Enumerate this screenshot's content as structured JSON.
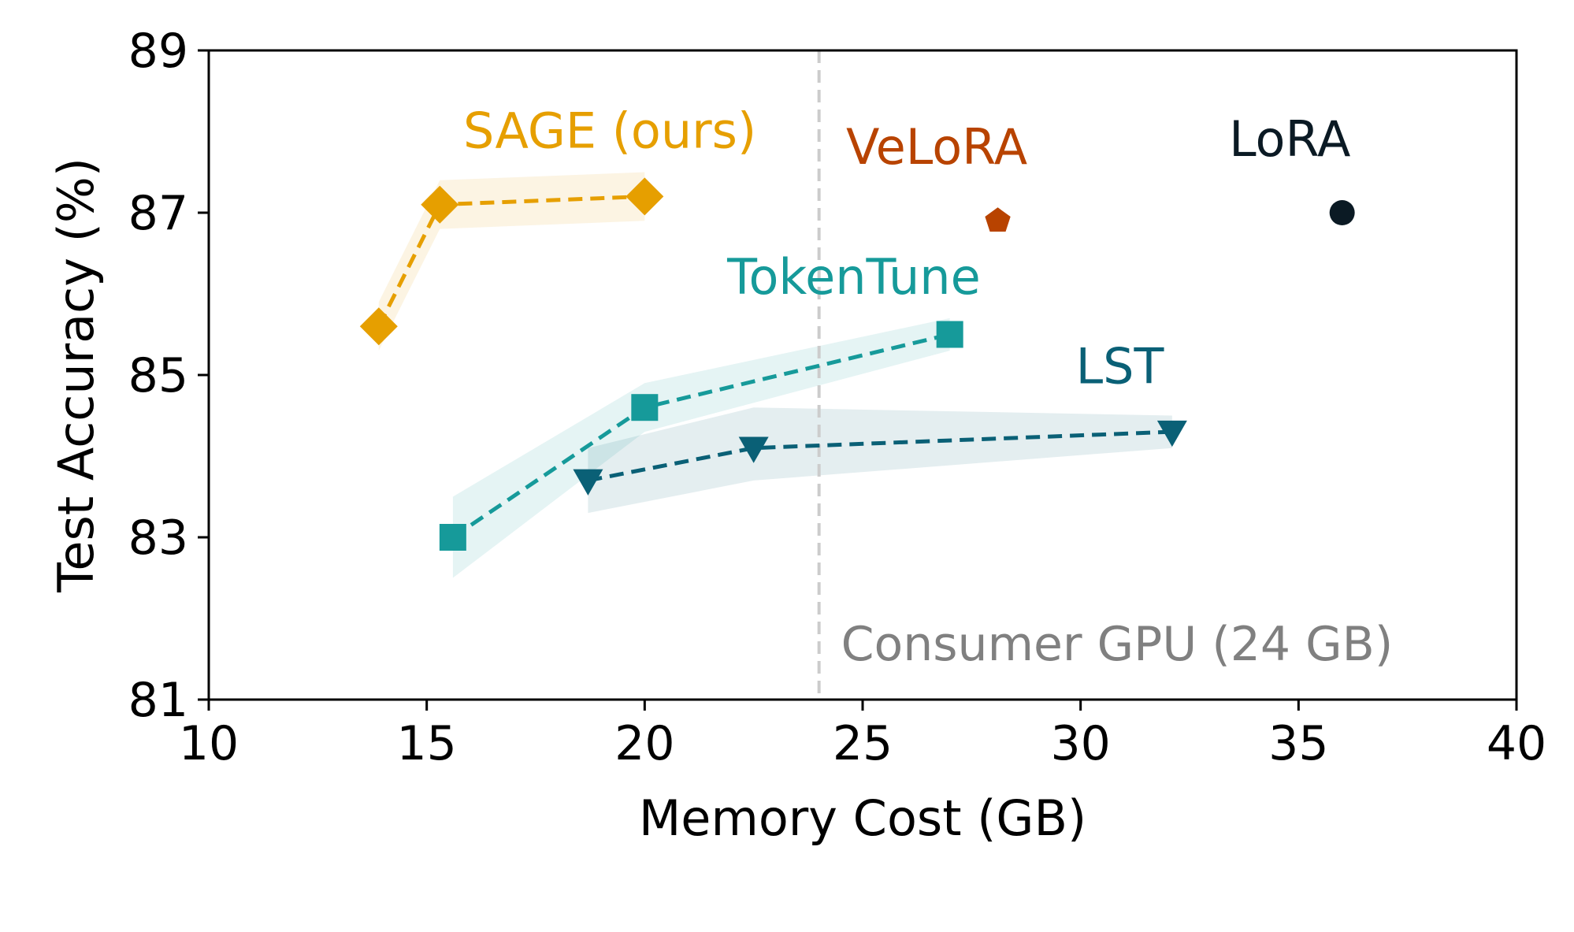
{
  "chart_data": {
    "type": "scatter",
    "title": "",
    "xlabel": "Memory Cost (GB)",
    "ylabel": "Test Accuracy (%)",
    "xlim": [
      10,
      40
    ],
    "ylim": [
      81,
      89
    ],
    "xticks": [
      10,
      15,
      20,
      25,
      30,
      35,
      40
    ],
    "yticks": [
      81,
      83,
      85,
      87,
      89
    ],
    "grid": false,
    "legend": "none",
    "series": [
      {
        "name": "SAGE (ours)",
        "label": "SAGE (ours)",
        "color": "#E69F00",
        "marker": "diamond",
        "dashed": true,
        "points": [
          {
            "x": 13.9,
            "y": 85.6,
            "lo": 85.3,
            "hi": 85.9
          },
          {
            "x": 15.3,
            "y": 87.1,
            "lo": 86.8,
            "hi": 87.4
          },
          {
            "x": 20.0,
            "y": 87.2,
            "lo": 86.9,
            "hi": 87.5
          }
        ]
      },
      {
        "name": "VeLoRA",
        "label": "VeLoRA",
        "color": "#B84300",
        "marker": "pentagon",
        "dashed": false,
        "points": [
          {
            "x": 28.1,
            "y": 86.9
          }
        ]
      },
      {
        "name": "LoRA",
        "label": "LoRA",
        "color": "#0B1A24",
        "marker": "circle",
        "dashed": false,
        "points": [
          {
            "x": 36.0,
            "y": 87.0
          }
        ]
      },
      {
        "name": "TokenTune",
        "label": "TokenTune",
        "color": "#169A9A",
        "marker": "square",
        "dashed": true,
        "points": [
          {
            "x": 15.6,
            "y": 83.0,
            "lo": 82.5,
            "hi": 83.5
          },
          {
            "x": 20.0,
            "y": 84.6,
            "lo": 84.3,
            "hi": 84.9
          },
          {
            "x": 27.0,
            "y": 85.5,
            "lo": 85.3,
            "hi": 85.7
          }
        ]
      },
      {
        "name": "LST",
        "label": "LST",
        "color": "#0A6076",
        "marker": "triangle-down",
        "dashed": true,
        "points": [
          {
            "x": 18.7,
            "y": 83.7,
            "lo": 83.3,
            "hi": 84.1
          },
          {
            "x": 22.5,
            "y": 84.1,
            "lo": 83.7,
            "hi": 84.6
          },
          {
            "x": 32.1,
            "y": 84.3,
            "lo": 84.1,
            "hi": 84.5
          }
        ]
      }
    ],
    "annotations": [
      {
        "type": "vline",
        "x": 24,
        "text": "Consumer GPU (24 GB)",
        "color": "#CCCCCC",
        "text_color": "#808080"
      }
    ]
  }
}
